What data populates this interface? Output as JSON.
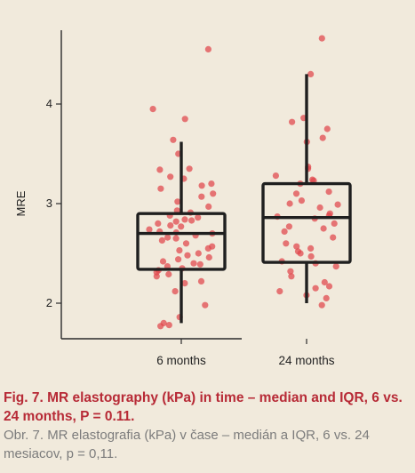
{
  "chart_data": {
    "type": "box",
    "ylabel": "MRE",
    "categories": [
      "6 months",
      "24 months"
    ],
    "yticks": [
      2,
      3,
      4
    ],
    "ylim": [
      1.65,
      4.95
    ],
    "box_stats": [
      {
        "category": "6 months",
        "whisker_low": 1.8,
        "q1": 2.34,
        "median": 2.7,
        "q3": 2.9,
        "whisker_high": 3.62
      },
      {
        "category": "24 months",
        "whisker_low": 2.0,
        "q1": 2.41,
        "median": 2.86,
        "q3": 3.2,
        "whisker_high": 4.3
      }
    ],
    "points": [
      {
        "category": "6 months",
        "values": [
          4.55,
          3.95,
          3.85,
          3.64,
          3.5,
          3.35,
          3.34,
          3.27,
          3.25,
          3.2,
          3.18,
          3.15,
          3.1,
          3.07,
          3.02,
          2.97,
          2.93,
          2.91,
          2.88,
          2.86,
          2.84,
          2.83,
          2.82,
          2.8,
          2.78,
          2.77,
          2.74,
          2.72,
          2.71,
          2.7,
          2.68,
          2.66,
          2.65,
          2.63,
          2.6,
          2.57,
          2.55,
          2.53,
          2.5,
          2.48,
          2.46,
          2.44,
          2.42,
          2.4,
          2.39,
          2.37,
          2.35,
          2.33,
          2.31,
          2.29,
          2.27,
          2.22,
          2.2,
          2.12,
          1.98,
          1.86,
          1.8,
          1.78,
          1.77
        ]
      },
      {
        "category": "24 months",
        "values": [
          4.66,
          4.3,
          3.86,
          3.82,
          3.75,
          3.66,
          3.62,
          3.37,
          3.35,
          3.28,
          3.24,
          3.23,
          3.2,
          3.12,
          3.1,
          3.03,
          3.0,
          2.99,
          2.96,
          2.9,
          2.88,
          2.87,
          2.85,
          2.8,
          2.77,
          2.75,
          2.72,
          2.66,
          2.6,
          2.57,
          2.55,
          2.52,
          2.5,
          2.47,
          2.42,
          2.4,
          2.37,
          2.32,
          2.27,
          2.21,
          2.17,
          2.15,
          2.12,
          2.08,
          2.05,
          1.98
        ]
      }
    ],
    "point_color": "#e0454b",
    "box_color": "#1f1f1f",
    "grid": false
  },
  "caption": {
    "title_en": "Fig. 7. MR elastography (kPa) in time – median and IQR, 6 vs. 24 months, P = 0.11.",
    "title_sk": "Obr. 7. MR elastografia (kPa) v čase – medián a IQR, 6 vs. 24 mesiacov, p = 0,11."
  },
  "colors": {
    "background": "#f1eadc",
    "caption_en": "#b72a36",
    "caption_sk": "#7c7c7c"
  }
}
